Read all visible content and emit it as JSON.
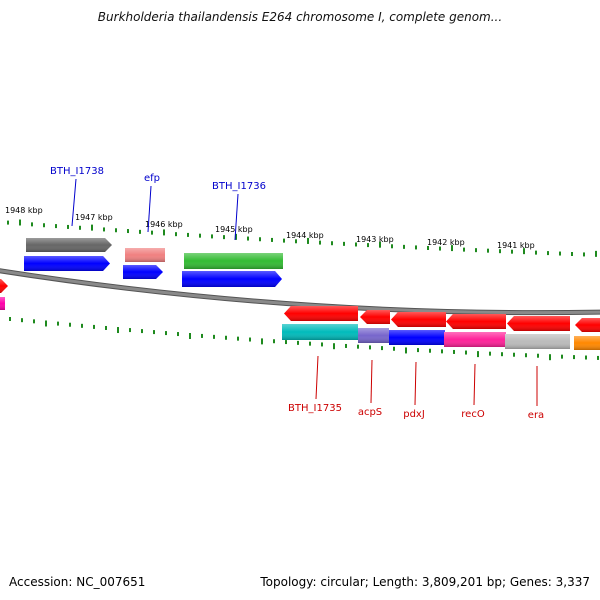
{
  "title": "Burkholderia thailandensis E264 chromosome I, complete genom...",
  "footer": {
    "accession": "Accession: NC_007651",
    "summary": "Topology: circular; Length: 3,809,201 bp; Genes: 3,337"
  },
  "colors": {
    "backbone": "#8a8a8a",
    "tick": "#1e8a1e",
    "label_top": "#0000cc",
    "label_bottom": "#cc0000",
    "tick_label": "#000000"
  },
  "ticks": [
    "1948 kbp",
    "1947 kbp",
    "1946 kbp",
    "1945 kbp",
    "1944 kbp",
    "1943 kbp",
    "1942 kbp",
    "1941 kbp"
  ],
  "labels_top": [
    "BTH_I1738",
    "efp",
    "BTH_I1736"
  ],
  "labels_bottom": [
    "BTH_I1735",
    "acpS",
    "pdxJ",
    "recO",
    "era"
  ],
  "features": [
    {
      "name": "partial-left-red",
      "color": "#ff0000"
    },
    {
      "name": "partial-left-magenta",
      "color": "#ff00aa"
    },
    {
      "name": "BTH_I1738-gene",
      "color": "#666666"
    },
    {
      "name": "BTH_I1738-cds",
      "color": "#0000ff"
    },
    {
      "name": "efp-gene",
      "color": "#f08080"
    },
    {
      "name": "efp-cds",
      "color": "#0000ff"
    },
    {
      "name": "BTH_I1736-gene",
      "color": "#33bb33"
    },
    {
      "name": "BTH_I1736-cds",
      "color": "#0000ff"
    },
    {
      "name": "BTH_I1735-gene",
      "color": "#ff0000"
    },
    {
      "name": "BTH_I1735-cds",
      "color": "#00bbbb"
    },
    {
      "name": "acpS-gene",
      "color": "#ff0000"
    },
    {
      "name": "acpS-cds",
      "color": "#7766cc"
    },
    {
      "name": "pdxJ-gene",
      "color": "#ff0000"
    },
    {
      "name": "pdxJ-cds",
      "color": "#0000ff"
    },
    {
      "name": "recO-gene",
      "color": "#ff0000"
    },
    {
      "name": "recO-cds",
      "color": "#ff2299"
    },
    {
      "name": "era-gene",
      "color": "#ff0000"
    },
    {
      "name": "era-cds",
      "color": "#bbbbbb"
    },
    {
      "name": "partial-right-red",
      "color": "#ff0000"
    },
    {
      "name": "partial-right-orange",
      "color": "#ff8800"
    }
  ]
}
